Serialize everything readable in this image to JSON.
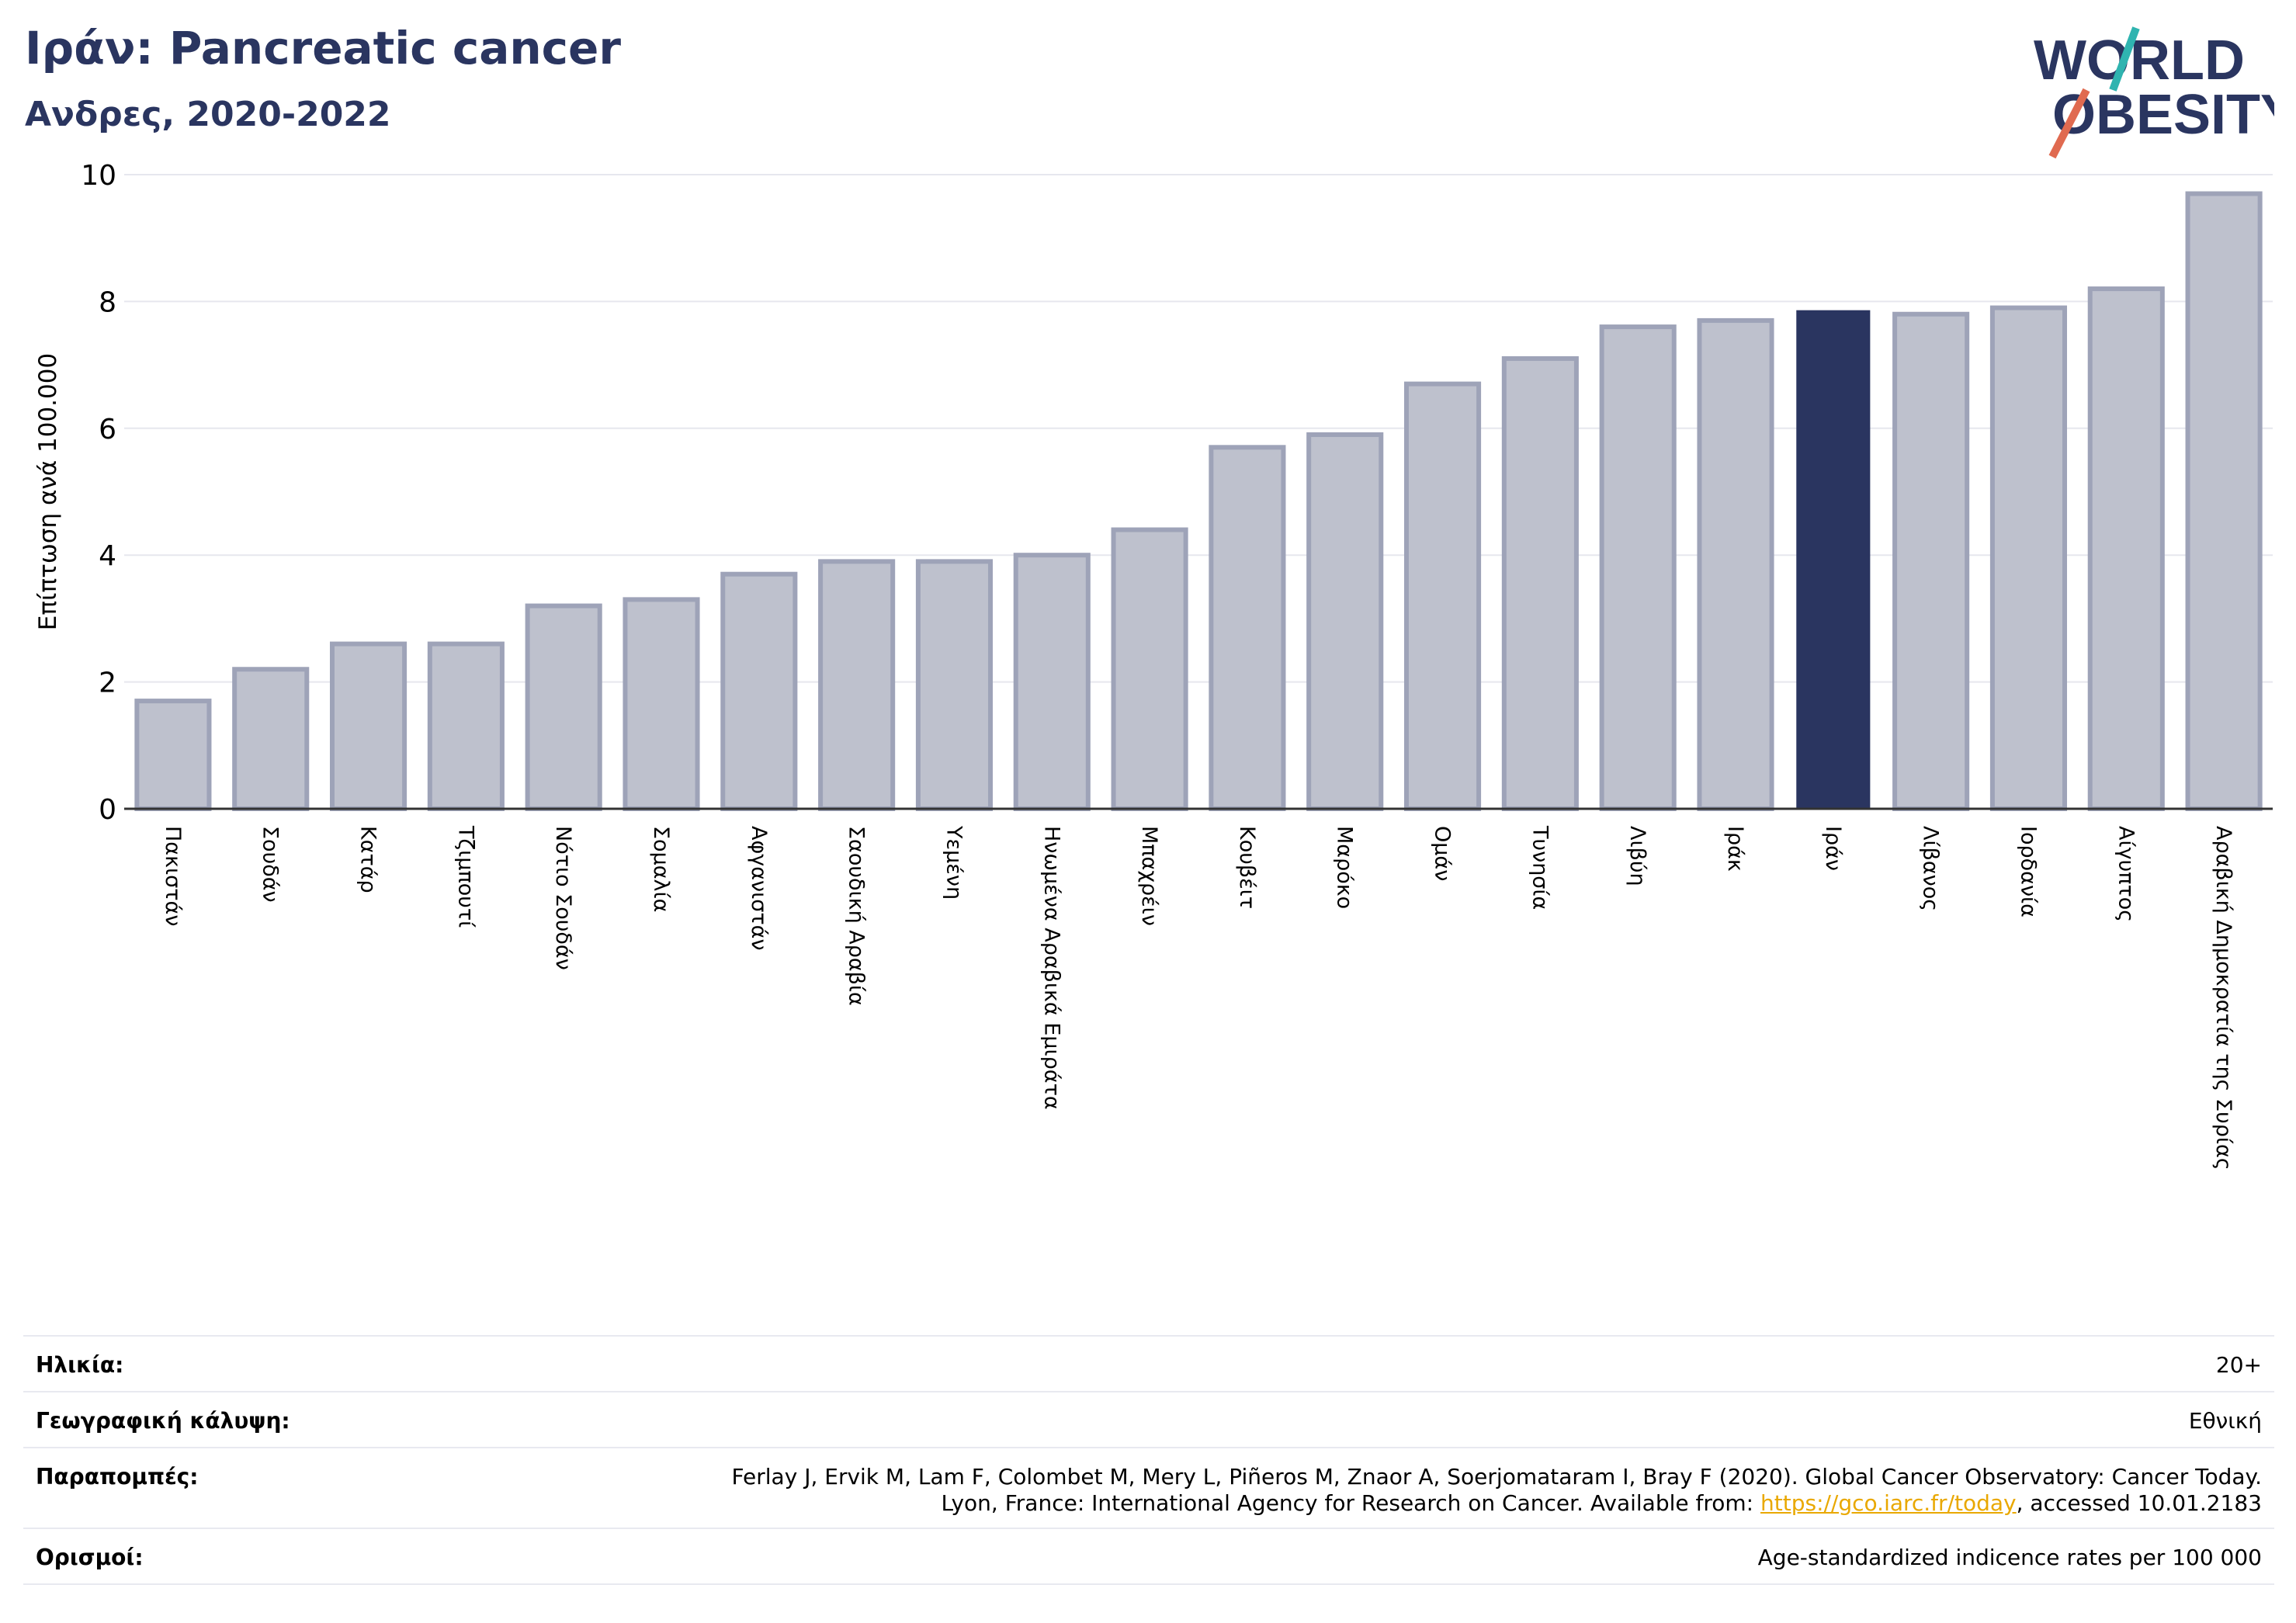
{
  "header": {
    "title": "Ιράν: Pancreatic cancer",
    "subtitle": "Ανδρες, 2020-2022"
  },
  "logo": {
    "line1": "WORLD",
    "line2": "OBESITY"
  },
  "colors": {
    "highlight": "#2a3560",
    "bar": "#bec1cd",
    "bar_stroke": "#9ea3b8",
    "accent_teal": "#2fb4b0",
    "accent_red": "#e06a50"
  },
  "chart_data": {
    "type": "bar",
    "ylabel": "Επίπτωση ανά 100.000",
    "ylim": [
      0,
      10
    ],
    "yticks": [
      0,
      2,
      4,
      6,
      8,
      10
    ],
    "grid": true,
    "highlight": "Ιράν",
    "categories": [
      "Πακιστάν",
      "Σουδάν",
      "Κατάρ",
      "Τζιμπουτί",
      "Νότιο Σουδάν",
      "Σομαλία",
      "Αφγανιστάν",
      "Σαουδική Αραβία",
      "Υεμένη",
      "Ηνωμένα Αραβικά Εμιράτα",
      "Μπαχρέιν",
      "Κουβέιτ",
      "Μαρόκο",
      "Ομάν",
      "Τυνησία",
      "Λιβύη",
      "Ιράκ",
      "Ιράν",
      "Λίβανος",
      "Ιορδανία",
      "Αίγυπτος",
      "Αραβική Δημοκρατία της Συρίας"
    ],
    "values": [
      1.7,
      2.2,
      2.6,
      2.6,
      3.2,
      3.3,
      3.7,
      3.9,
      3.9,
      4.0,
      4.4,
      5.7,
      5.9,
      6.7,
      7.1,
      7.6,
      7.7,
      7.85,
      7.8,
      7.9,
      8.2,
      9.7
    ]
  },
  "footer": {
    "age_label": "Ηλικία:",
    "age_value": "20+",
    "coverage_label": "Γεωγραφική κάλυψη:",
    "coverage_value": "Εθνική",
    "refs_label": "Παραπομπές:",
    "refs_line1": "Ferlay J, Ervik M, Lam F, Colombet M, Mery L, Piñeros M, Znaor A, Soerjomataram I, Bray F (2020). Global Cancer Observatory: Cancer Today.",
    "refs_line2_pre": "Lyon, France: International Agency for Research on Cancer. Available from: ",
    "refs_link": "https://gco.iarc.fr/today",
    "refs_line2_post": ", accessed 10.01.2183",
    "defs_label": "Ορισμοί:",
    "defs_value": "Age-standardized indicence rates per 100 000"
  }
}
